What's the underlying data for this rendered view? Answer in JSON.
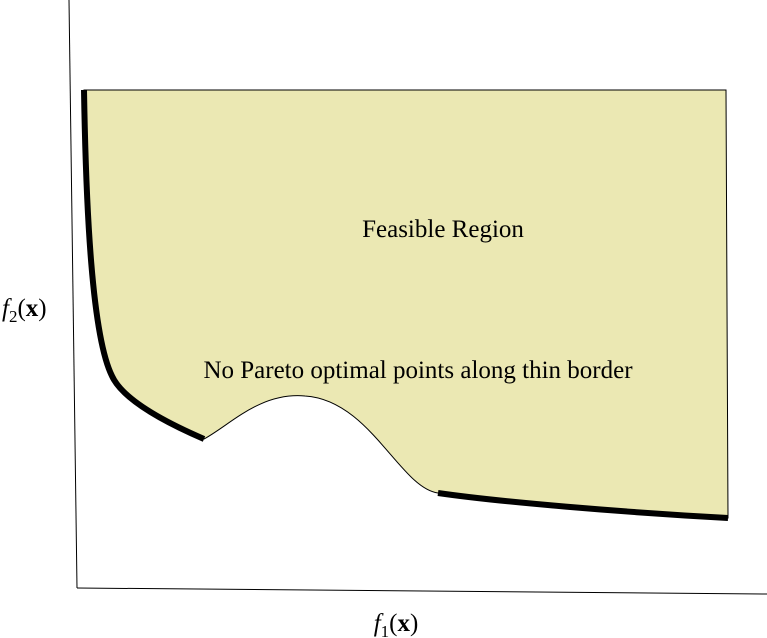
{
  "region_label": "Feasible Region",
  "border_note": "No Pareto optimal points along thin border",
  "x_axis_label": [
    "f",
    "1",
    "(",
    "x",
    ")"
  ],
  "y_axis_label": [
    "f",
    "2",
    "(",
    "x",
    ")"
  ]
}
